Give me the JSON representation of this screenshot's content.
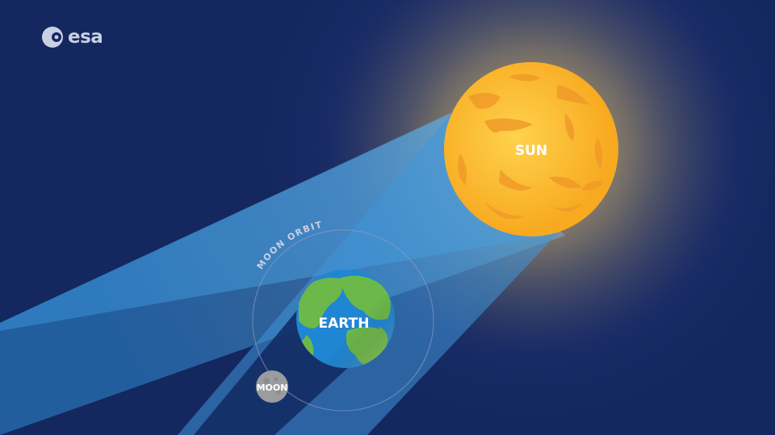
{
  "logo": {
    "text": "esa",
    "icon": "esa-logo-icon"
  },
  "labels": {
    "sun": "SUN",
    "earth": "EARTH",
    "moon": "MOON",
    "orbit": "MOON ORBIT"
  },
  "colors": {
    "background": "#14275f",
    "sun": "#f7b52a",
    "sun_spots": "#f09a2a",
    "earth_ocean": "#1f86d4",
    "earth_land": "#6cb84a",
    "moon": "#9a9ca0",
    "light_cone": "#4aa3e0",
    "umbra": "#11265f"
  }
}
